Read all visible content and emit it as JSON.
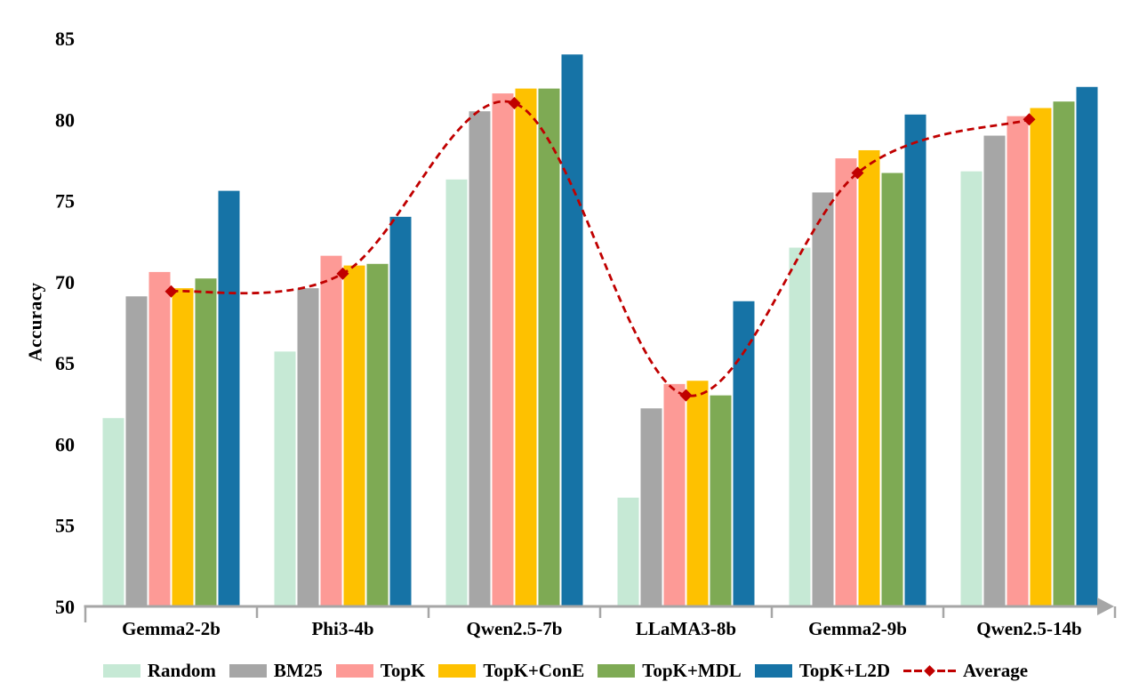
{
  "figure": {
    "background": "#ffffff",
    "text_color": "#000000"
  },
  "chart_data": {
    "type": "bar",
    "title": "",
    "xlabel": "",
    "ylabel": "Accuracy",
    "ylim": [
      50,
      85
    ],
    "yticks": [
      50,
      55,
      60,
      65,
      70,
      75,
      80,
      85
    ],
    "grid": false,
    "legend_position": "bottom",
    "axis_color": "#a6a6a6",
    "categories": [
      "Gemma2-2b",
      "Phi3-4b",
      "Qwen2.5-7b",
      "LLaMA3-8b",
      "Gemma2-9b",
      "Qwen2.5-14b"
    ],
    "series": [
      {
        "name": "Random",
        "color": "#c6e9d5",
        "values": [
          61.6,
          65.7,
          76.3,
          56.7,
          72.1,
          76.8
        ]
      },
      {
        "name": "BM25",
        "color": "#a6a6a6",
        "values": [
          69.1,
          69.6,
          80.5,
          62.2,
          75.5,
          79.0
        ]
      },
      {
        "name": "TopK",
        "color": "#fd9a96",
        "values": [
          70.6,
          71.6,
          81.6,
          63.7,
          77.6,
          80.2
        ]
      },
      {
        "name": "TopK+ConE",
        "color": "#fec100",
        "values": [
          69.6,
          71.0,
          81.9,
          63.9,
          78.1,
          80.7
        ]
      },
      {
        "name": "TopK+MDL",
        "color": "#7eaa54",
        "values": [
          70.2,
          71.1,
          81.9,
          63.0,
          76.7,
          81.1
        ]
      },
      {
        "name": "TopK+L2D",
        "color": "#1673a6",
        "values": [
          75.6,
          74.0,
          84.0,
          68.8,
          80.3,
          82.0
        ]
      }
    ],
    "line_series": {
      "name": "Average",
      "color": "#c00000",
      "style": "dashed",
      "marker": "diamond",
      "values": [
        69.4,
        70.5,
        81.0,
        63.0,
        76.7,
        80.0
      ]
    }
  }
}
